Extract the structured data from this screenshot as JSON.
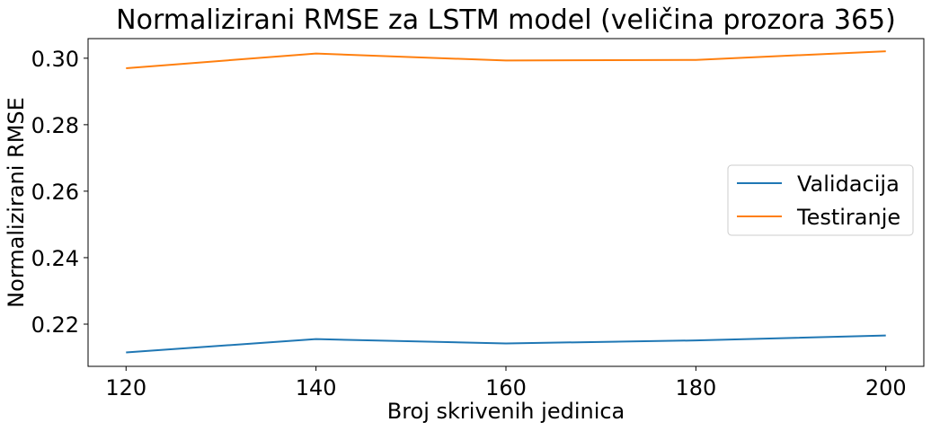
{
  "chart_data": {
    "type": "line",
    "title": "Normalizirani RMSE za LSTM model (veličina prozora 365)",
    "xlabel": "Broj skrivenih jedinica",
    "ylabel": "Normalizirani RMSE",
    "x": [
      120,
      140,
      160,
      180,
      200
    ],
    "xticks": [
      120,
      140,
      160,
      180,
      200
    ],
    "xtick_labels": [
      "120",
      "140",
      "160",
      "180",
      "200"
    ],
    "yticks": [
      0.22,
      0.24,
      0.26,
      0.28,
      0.3
    ],
    "ytick_labels": [
      "0.22",
      "0.24",
      "0.26",
      "0.28",
      "0.30"
    ],
    "xlim": [
      116,
      204
    ],
    "ylim": [
      0.2073,
      0.3059
    ],
    "grid": false,
    "legend_position": "center-right",
    "series": [
      {
        "name": "Validacija",
        "color": "#1f77b4",
        "values": [
          0.2115,
          0.2155,
          0.2142,
          0.2151,
          0.2166
        ]
      },
      {
        "name": "Testiranje",
        "color": "#ff7f0e",
        "values": [
          0.297,
          0.3014,
          0.2993,
          0.2995,
          0.3021
        ]
      }
    ]
  }
}
